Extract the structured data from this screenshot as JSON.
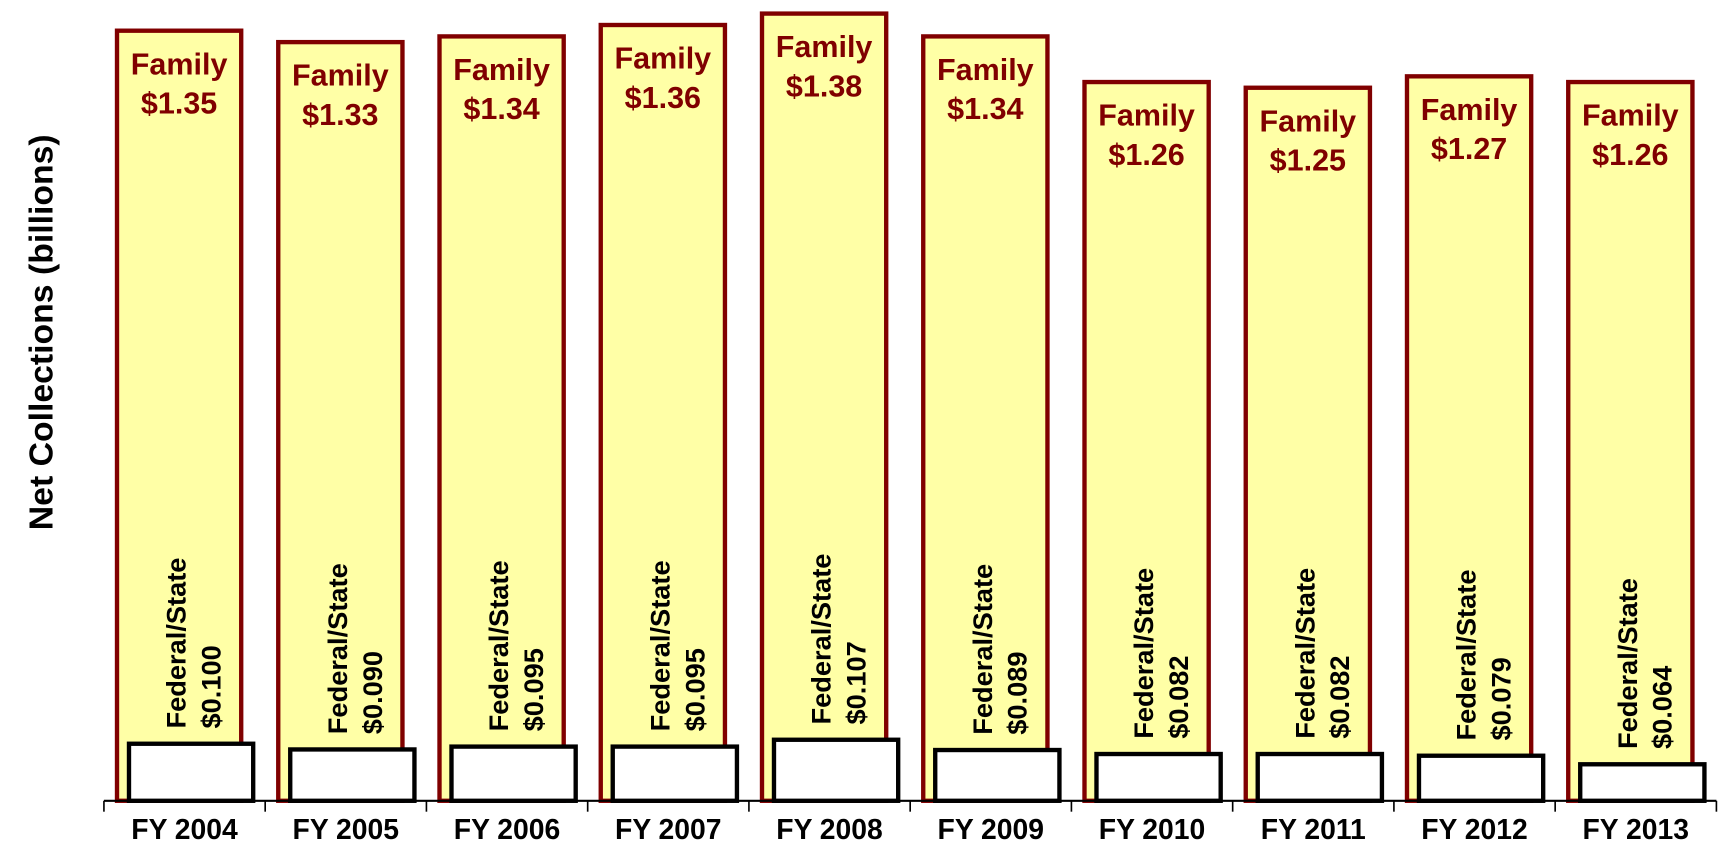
{
  "chart_data": {
    "type": "overlapped_bar",
    "ylabel": "Net Collections (billions)",
    "categories": [
      "FY 2004",
      "FY 2005",
      "FY 2006",
      "FY 2007",
      "FY 2008",
      "FY 2009",
      "FY 2010",
      "FY 2011",
      "FY 2012",
      "FY 2013"
    ],
    "series": [
      {
        "name": "Family",
        "color": "#ffffa6",
        "edge": "#800000",
        "values": [
          1.35,
          1.33,
          1.34,
          1.36,
          1.38,
          1.34,
          1.26,
          1.25,
          1.27,
          1.26
        ],
        "value_labels": [
          "$1.35",
          "$1.33",
          "$1.34",
          "$1.36",
          "$1.38",
          "$1.34",
          "$1.26",
          "$1.25",
          "$1.27",
          "$1.26"
        ]
      },
      {
        "name": "Federal/State",
        "color": "#ffffff",
        "edge": "#000000",
        "values": [
          0.1,
          0.09,
          0.095,
          0.095,
          0.107,
          0.089,
          0.082,
          0.082,
          0.079,
          0.064
        ],
        "value_labels": [
          "$0.100",
          "$0.090",
          "$0.095",
          "$0.095",
          "$0.107",
          "$0.089",
          "$0.082",
          "$0.082",
          "$0.079",
          "$0.064"
        ]
      }
    ],
    "ylim": [
      0,
      1.4
    ]
  }
}
